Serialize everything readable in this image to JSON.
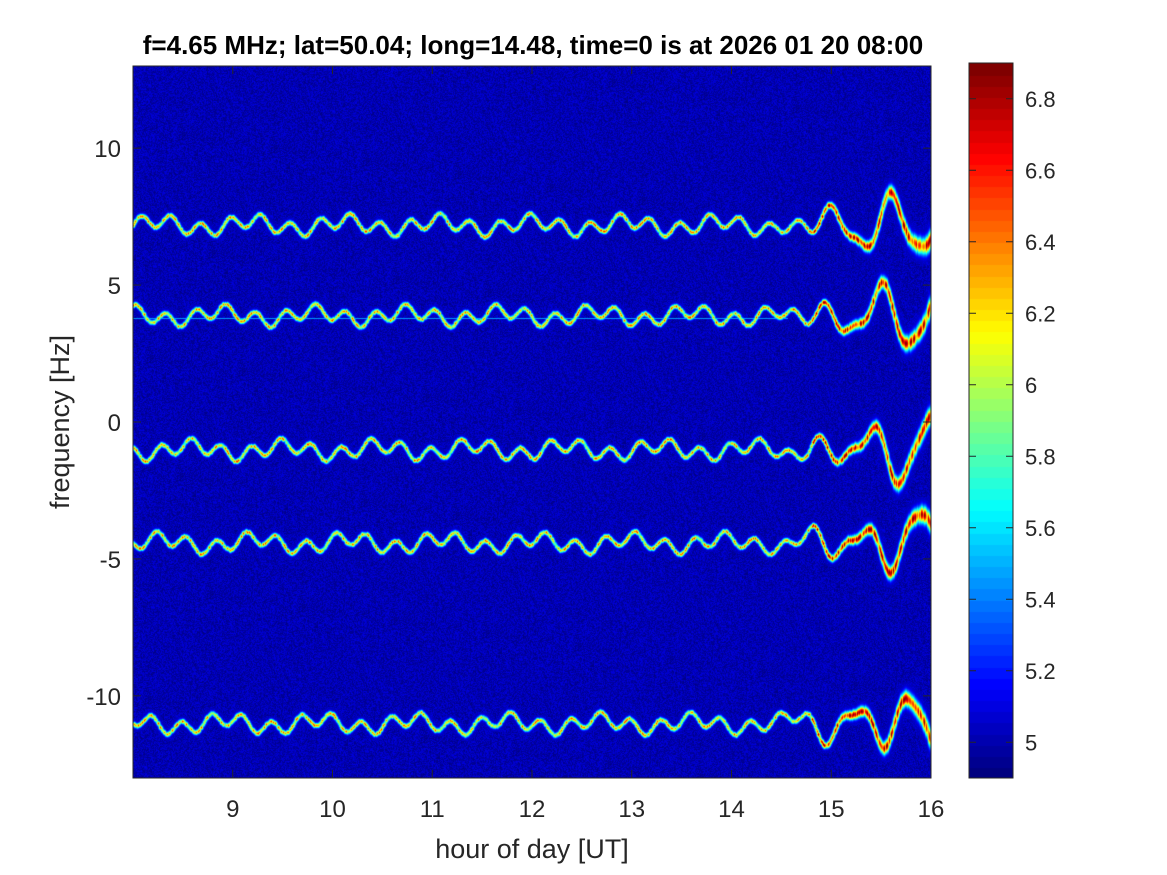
{
  "chart_data": {
    "type": "heatmap",
    "title": "f=4.65 MHz;  lat=50.04; long=14.48, time=0 is at 2026 01 20 08:00",
    "xlabel": "hour of day [UT]",
    "ylabel": "frequency [Hz]",
    "xlim": [
      8,
      16
    ],
    "ylim": [
      -13,
      13
    ],
    "x_ticks": [
      9,
      10,
      11,
      12,
      13,
      14,
      15,
      16
    ],
    "y_ticks": [
      -10,
      -5,
      0,
      5,
      10
    ],
    "colormap": "jet",
    "colorbar": {
      "range": [
        4.9,
        6.9
      ],
      "ticks": [
        "5",
        "5.2",
        "5.4",
        "5.6",
        "5.8",
        "6",
        "6.2",
        "6.4",
        "6.6",
        "6.8"
      ],
      "tick_values": [
        5,
        5.2,
        5.4,
        5.6,
        5.8,
        6,
        6.2,
        6.4,
        6.6,
        6.8
      ]
    },
    "traces": [
      {
        "center_hz": 7.2,
        "description": "upper Doppler trace"
      },
      {
        "center_hz": 3.9,
        "description": "trace with constant 3.8 Hz line"
      },
      {
        "center_hz": -1.0,
        "description": "central Doppler trace"
      },
      {
        "center_hz": -4.4,
        "description": "lower Doppler trace"
      },
      {
        "center_hz": -11.0,
        "description": "lowest Doppler trace"
      }
    ],
    "background_level": 5.0,
    "peak_level": 6.8,
    "colors": {
      "background": "#0a2aa8",
      "peak": "#b00000",
      "frame": "#262626"
    }
  }
}
